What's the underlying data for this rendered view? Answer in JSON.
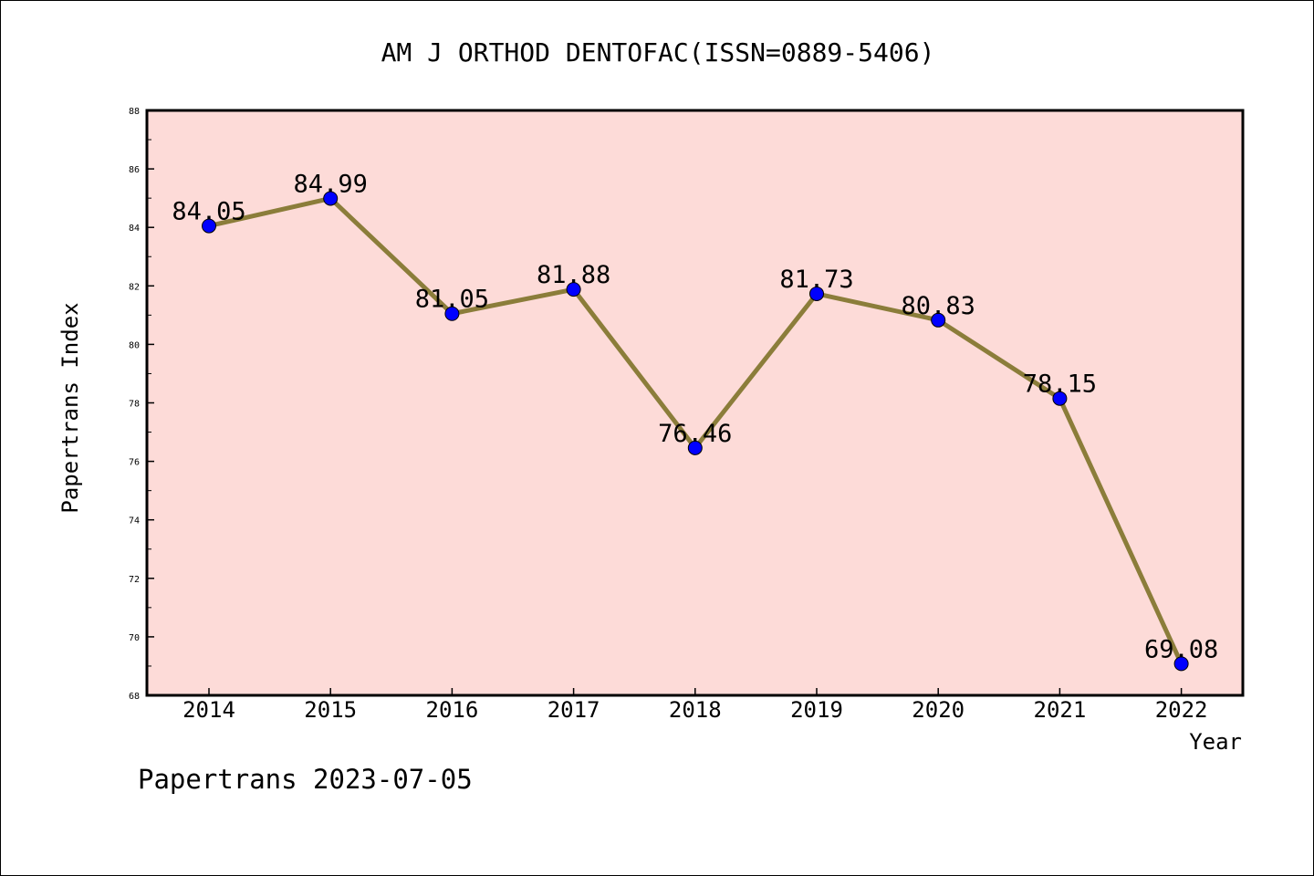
{
  "chart_data": {
    "type": "line",
    "title": "AM J ORTHOD DENTOFAC(ISSN=0889-5406)",
    "xlabel": "Year",
    "ylabel": "Papertrans Index",
    "categories": [
      "2014",
      "2015",
      "2016",
      "2017",
      "2018",
      "2019",
      "2020",
      "2021",
      "2022"
    ],
    "series": [
      {
        "values": [
          84.05,
          84.99,
          81.05,
          81.88,
          76.46,
          81.73,
          80.83,
          78.15,
          69.08
        ],
        "labels": [
          "84.05",
          "84.99",
          "81.05",
          "81.88",
          "76.46",
          "81.73",
          "80.83",
          "78.15",
          "69.08"
        ]
      }
    ],
    "ylim": [
      68,
      88
    ],
    "yticks": [
      "68",
      "70",
      "72",
      "74",
      "76",
      "78",
      "80",
      "82",
      "84",
      "86",
      "88"
    ],
    "grid": false,
    "legend": "none",
    "colors": {
      "plot_background": "#fddbd8",
      "line": "#8b7d3a",
      "marker": "#0000ff"
    }
  },
  "footer": {
    "text": "Papertrans 2023-07-05"
  }
}
